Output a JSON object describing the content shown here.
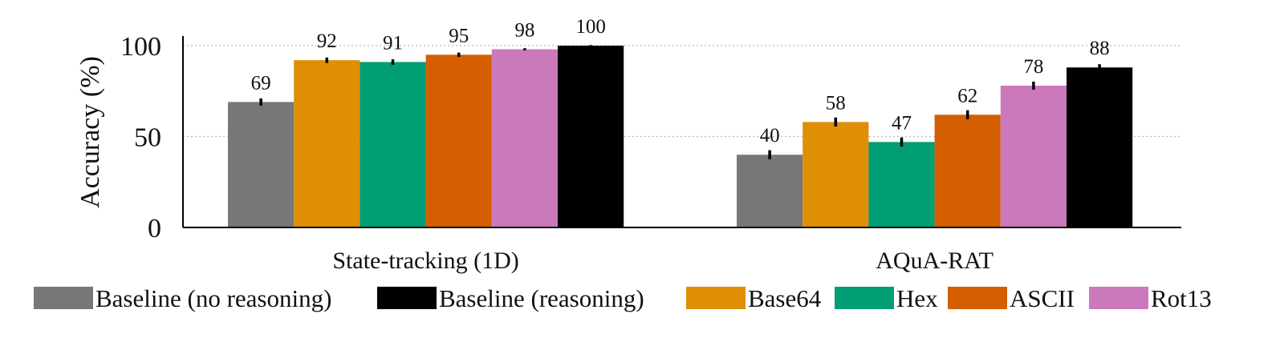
{
  "chart_data": {
    "type": "bar",
    "ylabel": "Accuracy (%)",
    "xlabel": "",
    "title": "",
    "ylim": [
      0,
      100
    ],
    "yticks": [
      "0",
      "50",
      "100"
    ],
    "grid": "horizontal-dotted",
    "legend_placement": "bottom",
    "categories": [
      "State-tracking (1D)",
      "AQuA-RAT"
    ],
    "series": [
      {
        "name": "Baseline (no reasoning)",
        "color": "#777777",
        "values": [
          69,
          40
        ],
        "labels": [
          "69",
          "40"
        ],
        "errors": [
          2,
          2.5
        ]
      },
      {
        "name": "Base64",
        "color": "#de8f05",
        "values": [
          92,
          58
        ],
        "labels": [
          "92",
          "58"
        ],
        "errors": [
          1.5,
          2.5
        ]
      },
      {
        "name": "Hex",
        "color": "#029e73",
        "values": [
          91,
          47
        ],
        "labels": [
          "91",
          "47"
        ],
        "errors": [
          1.5,
          2.5
        ]
      },
      {
        "name": "ASCII",
        "color": "#d55e00",
        "values": [
          95,
          62
        ],
        "labels": [
          "95",
          "62"
        ],
        "errors": [
          1.2,
          2.5
        ]
      },
      {
        "name": "Rot13",
        "color": "#cc78bc",
        "values": [
          98,
          78
        ],
        "labels": [
          "98",
          "78"
        ],
        "errors": [
          0.6,
          2.2
        ]
      },
      {
        "name": "Baseline (reasoning)",
        "color": "#000000",
        "values": [
          100,
          88
        ],
        "labels": [
          "100",
          "88"
        ],
        "errors": [
          0.3,
          1.8
        ]
      }
    ],
    "legend_order": [
      "Baseline (no reasoning)",
      "Baseline (reasoning)",
      "Base64",
      "Hex",
      "ASCII",
      "Rot13"
    ]
  }
}
